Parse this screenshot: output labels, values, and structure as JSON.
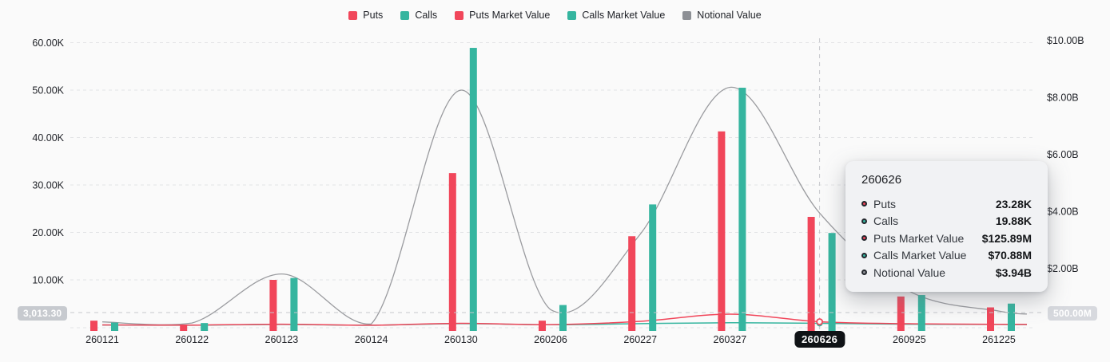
{
  "colors": {
    "puts": "#f1465a",
    "calls": "#35b59f",
    "notional": "#9a9b9f",
    "grid": "#e3e4e6",
    "crosshair": "#c6c8cc",
    "axis_text": "#1e2026",
    "background": "#fafafa"
  },
  "legend": {
    "items": [
      {
        "label": "Puts",
        "color": "#f1465a"
      },
      {
        "label": "Calls",
        "color": "#35b59f"
      },
      {
        "label": "Puts Market Value",
        "color": "#f1465a"
      },
      {
        "label": "Calls Market Value",
        "color": "#35b59f"
      },
      {
        "label": "Notional Value",
        "color": "#8d9095"
      }
    ]
  },
  "chart_data": {
    "type": "mixed-bar-line",
    "categories": [
      "260121",
      "260122",
      "260123",
      "260124",
      "260130",
      "260206",
      "260227",
      "260327",
      "260626",
      "260925",
      "261225"
    ],
    "series": [
      {
        "name": "Puts",
        "type": "bar",
        "axis": "left",
        "unit": "K contracts",
        "color": "#f1465a",
        "values": [
          1.4,
          0.4,
          10.0,
          0,
          32.5,
          1.4,
          19.2,
          41.3,
          23.28,
          6.5,
          4.2
        ]
      },
      {
        "name": "Calls",
        "type": "bar",
        "axis": "left",
        "unit": "K contracts",
        "color": "#35b59f",
        "values": [
          1.0,
          0.9,
          10.4,
          0,
          58.9,
          4.7,
          25.9,
          50.5,
          19.88,
          6.8,
          5.0
        ]
      },
      {
        "name": "Puts Market Value",
        "type": "line",
        "axis": "right",
        "unit": "$M",
        "color": "#f1465a",
        "values": [
          15,
          8,
          40,
          5,
          70,
          25,
          140,
          390,
          125.89,
          55,
          35
        ]
      },
      {
        "name": "Calls Market Value",
        "type": "line",
        "axis": "right",
        "unit": "$M",
        "color": "#35b59f",
        "values": [
          10,
          5,
          30,
          5,
          60,
          20,
          60,
          90,
          70.88,
          40,
          30
        ]
      },
      {
        "name": "Notional Value",
        "type": "line",
        "axis": "right",
        "unit": "$B",
        "color": "#9a9b9f",
        "values": [
          0.12,
          0.08,
          1.8,
          0.05,
          8.25,
          0.55,
          3.2,
          8.35,
          3.94,
          1.2,
          0.5
        ]
      }
    ],
    "left_axis": {
      "ticks": [
        "60.00K",
        "50.00K",
        "40.00K",
        "30.00K",
        "20.00K",
        "10.00K"
      ],
      "values": [
        60,
        50,
        40,
        30,
        20,
        10
      ],
      "range": [
        0,
        60
      ]
    },
    "right_axis": {
      "ticks": [
        "$10.00B",
        "$8.00B",
        "$6.00B",
        "$4.00B",
        "$2.00B"
      ],
      "values": [
        10,
        8,
        6,
        4,
        2
      ],
      "range": [
        0,
        10
      ]
    },
    "grid": "dashed-horizontal",
    "legend_position": "top-center",
    "highlighted_category": "260626"
  },
  "crosshair": {
    "category": "260626",
    "x_label": "260626",
    "left_value_label": "3,013.30",
    "right_value_label": "500.00M"
  },
  "tooltip": {
    "title": "260626",
    "rows": [
      {
        "label": "Puts",
        "value": "23.28K",
        "color": "#f1465a"
      },
      {
        "label": "Calls",
        "value": "19.88K",
        "color": "#35b59f"
      },
      {
        "label": "Puts Market Value",
        "value": "$125.89M",
        "color": "#f1465a"
      },
      {
        "label": "Calls Market Value",
        "value": "$70.88M",
        "color": "#35b59f"
      },
      {
        "label": "Notional Value",
        "value": "$3.94B",
        "color": "#8d9095"
      }
    ]
  }
}
